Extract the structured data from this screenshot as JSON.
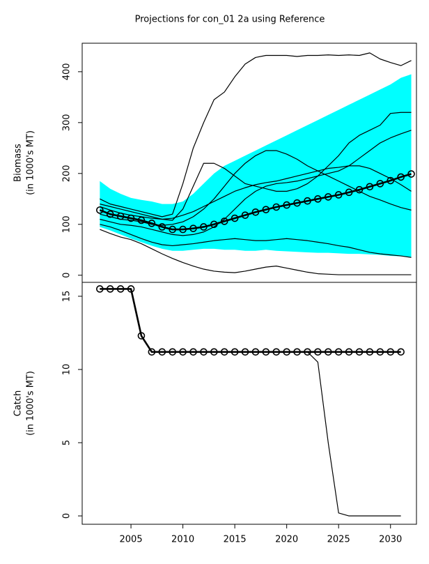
{
  "title": "Projections for con_01 2a using Reference",
  "chart_data": [
    {
      "type": "line",
      "ylabel": [
        "Biomass",
        "(in 1000's MT)"
      ],
      "x": [
        2002,
        2003,
        2004,
        2005,
        2006,
        2007,
        2008,
        2009,
        2010,
        2011,
        2012,
        2013,
        2014,
        2015,
        2016,
        2017,
        2018,
        2019,
        2020,
        2021,
        2022,
        2023,
        2024,
        2025,
        2026,
        2027,
        2028,
        2029,
        2030,
        2031,
        2032
      ],
      "xlim": [
        2000.3,
        2032.5
      ],
      "ylim": [
        -14,
        456
      ],
      "yticks": [
        0,
        100,
        200,
        300,
        400
      ],
      "band": {
        "color": "#00ffff",
        "upper": [
          185,
          170,
          160,
          152,
          148,
          145,
          140,
          140,
          145,
          160,
          180,
          200,
          215,
          225,
          235,
          245,
          255,
          265,
          275,
          285,
          295,
          305,
          315,
          325,
          335,
          345,
          355,
          365,
          375,
          388,
          395
        ],
        "lower": [
          95,
          88,
          80,
          72,
          65,
          58,
          52,
          48,
          48,
          50,
          52,
          52,
          50,
          50,
          48,
          48,
          50,
          48,
          47,
          46,
          45,
          44,
          44,
          43,
          42,
          42,
          41,
          40,
          38,
          37,
          36
        ]
      },
      "series": [
        {
          "color": "#000000",
          "values": [
            150,
            140,
            135,
            130,
            125,
            120,
            115,
            120,
            180,
            250,
            300,
            345,
            360,
            390,
            415,
            428,
            432,
            432,
            432,
            430,
            432,
            432,
            433,
            432,
            433,
            432,
            437,
            425,
            418,
            412,
            422
          ]
        },
        {
          "color": "#000000",
          "values": [
            90,
            82,
            75,
            70,
            62,
            52,
            42,
            33,
            25,
            18,
            12,
            8,
            6,
            5,
            8,
            12,
            16,
            18,
            14,
            10,
            6,
            3,
            2,
            1,
            1,
            1,
            1,
            1,
            1,
            1,
            1
          ]
        },
        {
          "color": "#000000",
          "values": [
            140,
            135,
            130,
            125,
            120,
            115,
            110,
            108,
            130,
            175,
            220,
            220,
            210,
            195,
            180,
            175,
            170,
            165,
            165,
            170,
            180,
            195,
            215,
            235,
            260,
            275,
            285,
            295,
            318,
            320,
            320
          ]
        },
        {
          "color": "#000000",
          "values": [
            120,
            115,
            110,
            108,
            105,
            100,
            98,
            100,
            105,
            115,
            130,
            150,
            175,
            200,
            220,
            235,
            245,
            245,
            238,
            228,
            215,
            205,
            195,
            185,
            175,
            165,
            155,
            148,
            140,
            133,
            128
          ]
        },
        {
          "color": "#000000",
          "values": [
            100,
            95,
            88,
            80,
            72,
            65,
            60,
            58,
            60,
            62,
            65,
            68,
            70,
            72,
            70,
            68,
            68,
            70,
            72,
            70,
            68,
            65,
            62,
            58,
            55,
            50,
            45,
            42,
            40,
            38,
            35
          ]
        },
        {
          "color": "#000000",
          "values": [
            110,
            105,
            100,
            98,
            95,
            90,
            85,
            80,
            78,
            80,
            85,
            95,
            110,
            130,
            150,
            165,
            175,
            180,
            182,
            185,
            190,
            195,
            200,
            205,
            215,
            230,
            245,
            260,
            270,
            278,
            285
          ]
        },
        {
          "color": "#000000",
          "values": [
            135,
            128,
            122,
            118,
            115,
            112,
            110,
            112,
            118,
            125,
            135,
            145,
            155,
            165,
            172,
            178,
            182,
            185,
            190,
            195,
            200,
            205,
            210,
            212,
            215,
            215,
            210,
            200,
            190,
            178,
            165
          ]
        },
        {
          "color": "#000000",
          "marker": "circle",
          "bold": true,
          "values": [
            128,
            120,
            116,
            112,
            108,
            102,
            95,
            90,
            90,
            92,
            95,
            100,
            106,
            112,
            118,
            124,
            129,
            134,
            138,
            142,
            146,
            150,
            154,
            158,
            163,
            168,
            174,
            180,
            186,
            193,
            199
          ]
        }
      ]
    },
    {
      "type": "line",
      "ylabel": [
        "Catch",
        "(in 1000's MT)"
      ],
      "x": [
        2002,
        2003,
        2004,
        2005,
        2006,
        2007,
        2008,
        2009,
        2010,
        2011,
        2012,
        2013,
        2014,
        2015,
        2016,
        2017,
        2018,
        2019,
        2020,
        2021,
        2022,
        2023,
        2024,
        2025,
        2026,
        2027,
        2028,
        2029,
        2030,
        2031,
        2032
      ],
      "xlim": [
        2000.3,
        2032.5
      ],
      "ylim": [
        -0.57,
        15.95
      ],
      "yticks": [
        0,
        5,
        10,
        15
      ],
      "xticks": [
        2005,
        2010,
        2015,
        2020,
        2025,
        2030
      ],
      "series": [
        {
          "color": "#000000",
          "values": [
            15.5,
            15.5,
            15.5,
            15.5,
            12.3,
            11.2,
            11.2,
            11.2,
            11.2,
            11.2,
            11.2,
            11.2,
            11.2,
            11.2,
            11.2,
            11.2,
            11.2,
            11.2,
            11.2,
            11.2,
            11.2,
            10.5,
            5,
            0.2,
            0,
            0,
            0,
            0,
            0,
            0,
            null
          ]
        },
        {
          "color": "#000000",
          "marker": "circle",
          "bold": true,
          "values": [
            15.5,
            15.5,
            15.5,
            15.5,
            12.3,
            11.2,
            11.2,
            11.2,
            11.2,
            11.2,
            11.2,
            11.2,
            11.2,
            11.2,
            11.2,
            11.2,
            11.2,
            11.2,
            11.2,
            11.2,
            11.2,
            11.2,
            11.2,
            11.2,
            11.2,
            11.2,
            11.2,
            11.2,
            11.2,
            11.2,
            null
          ]
        }
      ]
    }
  ]
}
